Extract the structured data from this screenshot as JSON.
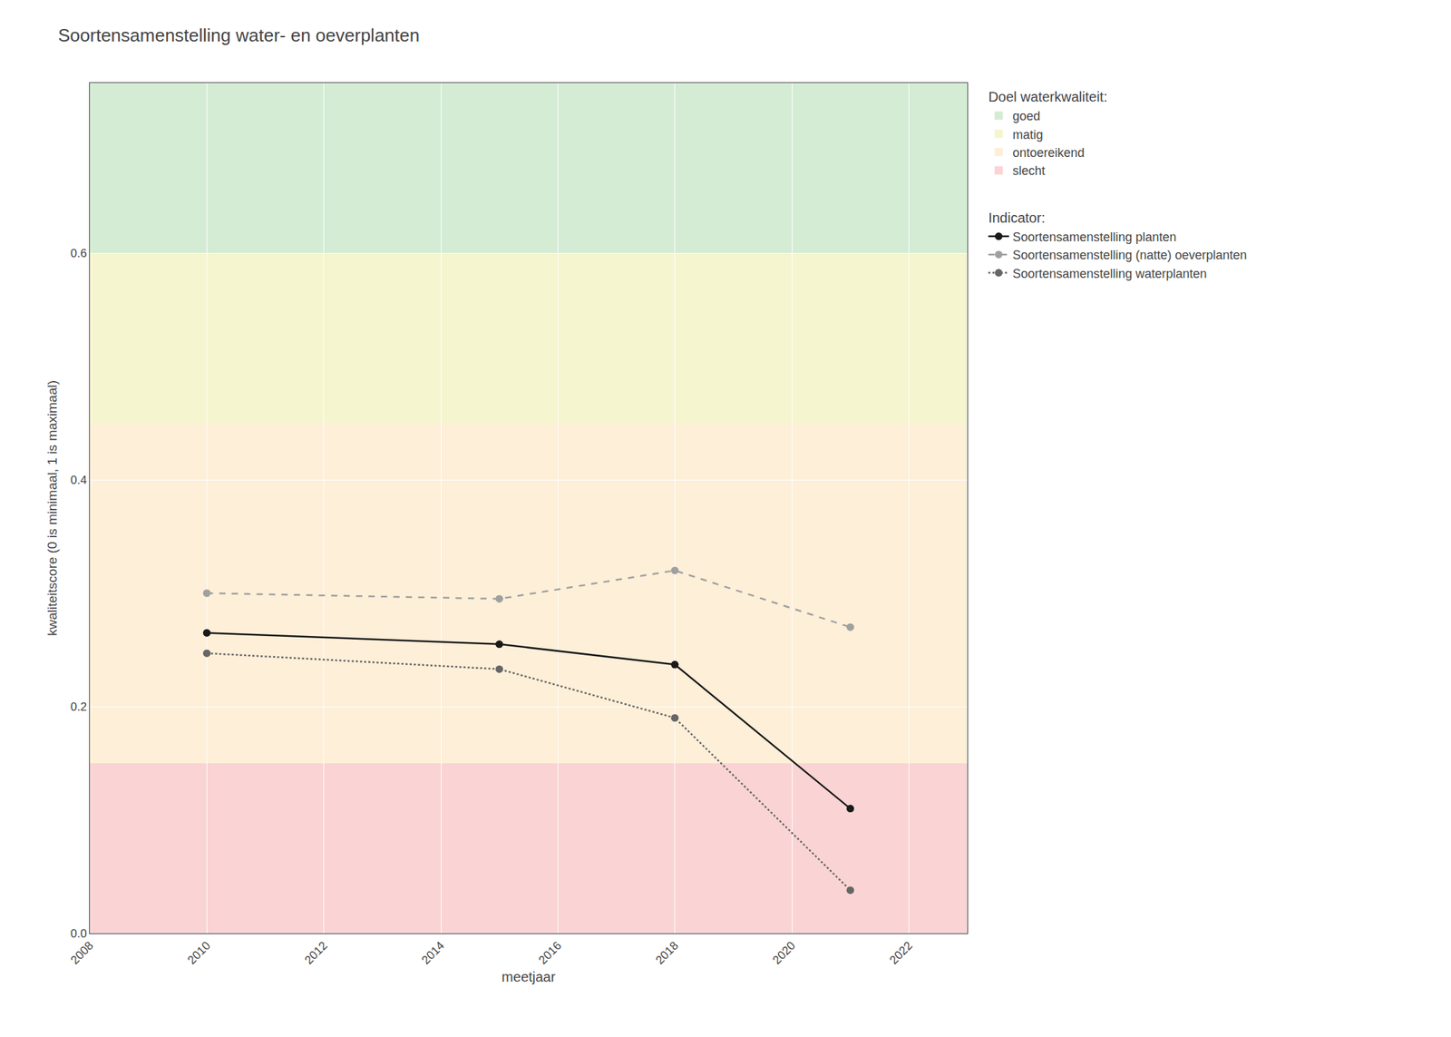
{
  "chart_data": {
    "type": "line",
    "title": "Soortensamenstelling water- en oeverplanten",
    "x_label": "meetjaar",
    "y_label": "kwaliteitscore (0 is minimaal, 1 is maximaal)",
    "xlim": [
      2008,
      2023
    ],
    "ylim": [
      0,
      0.75
    ],
    "xticks": [
      2008,
      2010,
      2012,
      2014,
      2016,
      2018,
      2020,
      2022
    ],
    "yticks": [
      {
        "value": 0.0,
        "label": "0.0"
      },
      0.2,
      0.4,
      0.6
    ],
    "grid": true,
    "legend": "right",
    "band_legend_title": "Doel waterkwaliteit:",
    "series_legend_title": "Indicator:",
    "bands": [
      {
        "label": "goed",
        "color": "#d5ecd4",
        "ymin": 0.6,
        "ymax": 0.75
      },
      {
        "label": "matig",
        "color": "#f5f5d0",
        "ymin": 0.45,
        "ymax": 0.6
      },
      {
        "label": "ontoereikend",
        "color": "#fdefd8",
        "ymin": 0.15,
        "ymax": 0.45
      },
      {
        "label": "slecht",
        "color": "#fad4d4",
        "ymin": 0.0,
        "ymax": 0.15
      }
    ],
    "series": [
      {
        "name": "Soortensamenstelling planten",
        "color": "#1a1a1a",
        "line_style": "solid",
        "marker": "circle",
        "x": [
          2010,
          2015,
          2018,
          2021
        ],
        "values": [
          0.265,
          0.255,
          0.237,
          0.11
        ]
      },
      {
        "name": "Soortensamenstelling (natte) oeverplanten",
        "color": "#a0a0a0",
        "line_style": "dash",
        "marker": "circle",
        "x": [
          2010,
          2015,
          2018,
          2021
        ],
        "values": [
          0.3,
          0.295,
          0.32,
          0.27
        ]
      },
      {
        "name": "Soortensamenstelling waterplanten",
        "color": "#666666",
        "line_style": "dot",
        "marker": "circle",
        "x": [
          2010,
          2015,
          2018,
          2021
        ],
        "values": [
          0.247,
          0.233,
          0.19,
          0.038
        ]
      }
    ]
  }
}
